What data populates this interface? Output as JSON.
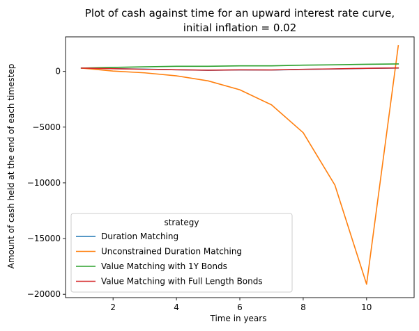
{
  "chart_data": {
    "type": "line",
    "title_lines": [
      "Plot of cash against time for an upward interest rate curve,",
      "initial inflation = 0.02"
    ],
    "xlabel": "Time in years",
    "ylabel": "Amount of cash held at the end of each timestep",
    "xlim": [
      0.5,
      11.5
    ],
    "ylim": [
      -20300,
      3100
    ],
    "xticks": [
      2,
      4,
      6,
      8,
      10
    ],
    "yticks": [
      0,
      -5000,
      -10000,
      -15000,
      -20000
    ],
    "ytick_labels": [
      "0",
      "−5000",
      "−10000",
      "−15000",
      "−20000"
    ],
    "legend": {
      "title": "strategy",
      "placement": "lower-left"
    },
    "x": [
      1,
      2,
      3,
      4,
      5,
      6,
      7,
      8,
      9,
      10,
      11
    ],
    "series": [
      {
        "name": "Duration Matching",
        "color": "#1f77b4",
        "values": [
          300,
          250,
          200,
          150,
          100,
          130,
          120,
          180,
          220,
          270,
          300
        ]
      },
      {
        "name": "Unconstrained Duration Matching",
        "color": "#ff7f0e",
        "values": [
          300,
          30,
          -130,
          -400,
          -850,
          -1650,
          -3000,
          -5500,
          -10200,
          -19100,
          2300
        ]
      },
      {
        "name": "Value Matching with 1Y Bonds",
        "color": "#2ca02c",
        "values": [
          300,
          360,
          410,
          460,
          460,
          500,
          500,
          560,
          590,
          640,
          670
        ]
      },
      {
        "name": "Value Matching with Full Length Bonds",
        "color": "#d62728",
        "values": [
          300,
          240,
          190,
          150,
          110,
          140,
          130,
          190,
          230,
          280,
          310
        ]
      }
    ]
  }
}
